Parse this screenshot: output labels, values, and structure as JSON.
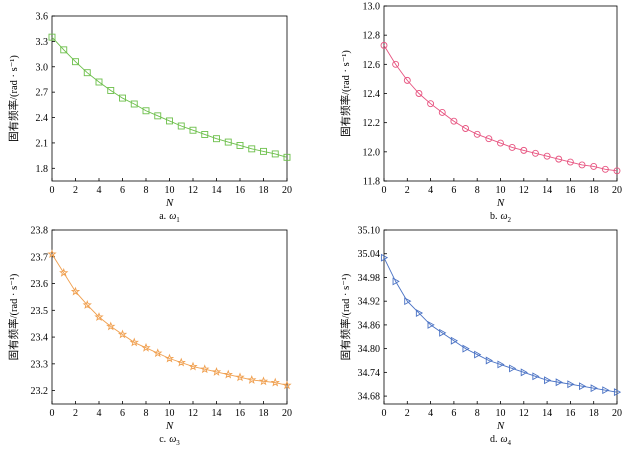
{
  "chart_data": [
    {
      "type": "line",
      "caption_prefix": "a.",
      "caption_symbol": "ω",
      "caption_sub": "1",
      "color": "#6cbf4a",
      "marker": "square",
      "xlabel": "N",
      "ylabel": "固有频率/(rad · s⁻¹)",
      "xlim": [
        0,
        20
      ],
      "ylim": [
        1.65,
        3.6
      ],
      "xticks": [
        "0",
        "2",
        "4",
        "6",
        "8",
        "10",
        "12",
        "14",
        "16",
        "18",
        "20"
      ],
      "yticks": [
        "1.8",
        "2.1",
        "2.4",
        "2.7",
        "3.0",
        "3.3",
        "3.6"
      ],
      "x": [
        0,
        1,
        2,
        3,
        4,
        5,
        6,
        7,
        8,
        9,
        10,
        11,
        12,
        13,
        14,
        15,
        16,
        17,
        18,
        19,
        20
      ],
      "values": [
        3.35,
        3.2,
        3.06,
        2.93,
        2.82,
        2.72,
        2.63,
        2.56,
        2.48,
        2.42,
        2.36,
        2.3,
        2.25,
        2.2,
        2.15,
        2.11,
        2.07,
        2.03,
        2.0,
        1.97,
        1.93
      ]
    },
    {
      "type": "line",
      "caption_prefix": "b.",
      "caption_symbol": "ω",
      "caption_sub": "2",
      "color": "#e75480",
      "marker": "circle",
      "xlabel": "N",
      "ylabel": "固有频率/(rad · s⁻¹)",
      "xlim": [
        0,
        20
      ],
      "ylim": [
        11.8,
        13.0
      ],
      "xticks": [
        "0",
        "2",
        "4",
        "6",
        "8",
        "10",
        "12",
        "14",
        "16",
        "18",
        "20"
      ],
      "yticks": [
        "11.8",
        "12.0",
        "12.2",
        "12.4",
        "12.6",
        "12.8",
        "13.0"
      ],
      "x": [
        0,
        1,
        2,
        3,
        4,
        5,
        6,
        7,
        8,
        9,
        10,
        11,
        12,
        13,
        14,
        15,
        16,
        17,
        18,
        19,
        20
      ],
      "values": [
        12.73,
        12.6,
        12.49,
        12.4,
        12.33,
        12.27,
        12.21,
        12.16,
        12.12,
        12.09,
        12.06,
        12.03,
        12.01,
        11.99,
        11.97,
        11.95,
        11.93,
        11.91,
        11.9,
        11.88,
        11.87
      ]
    },
    {
      "type": "line",
      "caption_prefix": "c.",
      "caption_symbol": "ω",
      "caption_sub": "3",
      "color": "#f0a050",
      "marker": "star",
      "xlabel": "N",
      "ylabel": "固有频率/(rad · s⁻¹)",
      "xlim": [
        0,
        20
      ],
      "ylim": [
        23.15,
        23.8
      ],
      "xticks": [
        "0",
        "2",
        "4",
        "6",
        "8",
        "10",
        "12",
        "14",
        "16",
        "18",
        "20"
      ],
      "yticks": [
        "23.2",
        "23.3",
        "23.4",
        "23.5",
        "23.6",
        "23.7",
        "23.8"
      ],
      "x": [
        0,
        1,
        2,
        3,
        4,
        5,
        6,
        7,
        8,
        9,
        10,
        11,
        12,
        13,
        14,
        15,
        16,
        17,
        18,
        19,
        20
      ],
      "values": [
        23.71,
        23.64,
        23.57,
        23.52,
        23.475,
        23.44,
        23.41,
        23.38,
        23.36,
        23.34,
        23.32,
        23.305,
        23.29,
        23.28,
        23.27,
        23.26,
        23.25,
        23.24,
        23.235,
        23.23,
        23.22
      ]
    },
    {
      "type": "line",
      "caption_prefix": "d.",
      "caption_symbol": "ω",
      "caption_sub": "4",
      "color": "#4a72c4",
      "marker": "triangle-right",
      "xlabel": "N",
      "ylabel": "固有频率/(rad · s⁻¹)",
      "xlim": [
        0,
        20
      ],
      "ylim": [
        34.66,
        35.1
      ],
      "xticks": [
        "0",
        "2",
        "4",
        "6",
        "8",
        "10",
        "12",
        "14",
        "16",
        "18",
        "20"
      ],
      "yticks": [
        "34.68",
        "34.74",
        "34.80",
        "34.86",
        "34.92",
        "34.98",
        "35.04",
        "35.10"
      ],
      "x": [
        0,
        1,
        2,
        3,
        4,
        5,
        6,
        7,
        8,
        9,
        10,
        11,
        12,
        13,
        14,
        15,
        16,
        17,
        18,
        19,
        20
      ],
      "values": [
        35.03,
        34.97,
        34.92,
        34.89,
        34.86,
        34.84,
        34.82,
        34.8,
        34.785,
        34.77,
        34.76,
        34.75,
        34.74,
        34.73,
        34.72,
        34.715,
        34.71,
        34.705,
        34.7,
        34.695,
        34.69
      ]
    }
  ]
}
